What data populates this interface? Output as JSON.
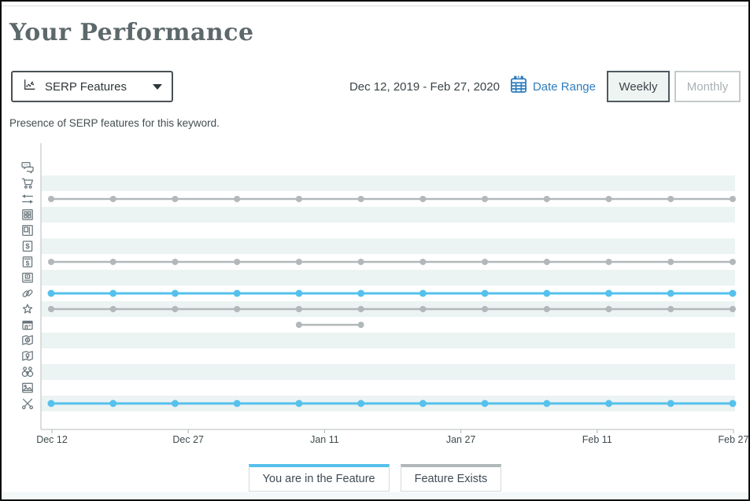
{
  "page": {
    "title": "Your Performance",
    "subtitle": "Presence of SERP features for this keyword."
  },
  "controls": {
    "metric_dropdown": {
      "value": "SERP Features",
      "icon": "scatter-chart-icon"
    },
    "date_range_text": "Dec 12, 2019 - Feb 27, 2020",
    "date_range_link": "Date Range",
    "calendar_icon": "calendar-icon",
    "granularity": {
      "selected": "Weekly",
      "options": [
        "Weekly",
        "Monthly"
      ]
    }
  },
  "legend": {
    "items": [
      {
        "label": "You are in the Feature",
        "color": "#55c1ec"
      },
      {
        "label": "Feature Exists",
        "color": "#b2b8ba"
      }
    ]
  },
  "colors": {
    "accent_blue": "#55c1ec",
    "series_gray": "#b2b8ba",
    "band_teal": "#ecf3f3",
    "link_blue": "#2f7dbe",
    "title_gray": "#5d686b",
    "axis_gray": "#cfd4d4"
  },
  "chart_data": {
    "type": "line",
    "title": "SERP feature presence timeline",
    "x_tick_labels": [
      "Dec 12",
      "Dec 27",
      "Jan 11",
      "Jan 27",
      "Feb 11",
      "Feb 27"
    ],
    "x_range": [
      "Dec 12, 2019",
      "Feb 27, 2020"
    ],
    "interval": "weekly",
    "num_points": 12,
    "grid": "horizontal-bands",
    "legend_position": "bottom",
    "series_colors": {
      "in_feature": "#55c1ec",
      "exists": "#b2b8ba"
    },
    "rows": [
      {
        "icon": "chat-icon",
        "status": "none",
        "points": []
      },
      {
        "icon": "cart-icon",
        "status": "none",
        "points": []
      },
      {
        "icon": "arrows-icon",
        "status": "exists",
        "points": [
          0,
          1,
          2,
          3,
          4,
          5,
          6,
          7,
          8,
          9,
          10,
          11
        ]
      },
      {
        "icon": "grid-icon",
        "status": "none",
        "points": []
      },
      {
        "icon": "layout-icon",
        "status": "none",
        "points": []
      },
      {
        "icon": "dollar-icon",
        "status": "none",
        "points": []
      },
      {
        "icon": "dollar-underline-icon",
        "status": "exists",
        "points": [
          0,
          1,
          2,
          3,
          4,
          5,
          6,
          7,
          8,
          9,
          10,
          11
        ]
      },
      {
        "icon": "video-icon",
        "status": "none",
        "points": []
      },
      {
        "icon": "link-icon",
        "status": "in_feature",
        "points": [
          0,
          1,
          2,
          3,
          4,
          5,
          6,
          7,
          8,
          9,
          10,
          11
        ]
      },
      {
        "icon": "star-icon",
        "status": "exists",
        "points": [
          0,
          1,
          2,
          3,
          4,
          5,
          6,
          7,
          8,
          9,
          10,
          11
        ]
      },
      {
        "icon": "news-icon",
        "status": "exists",
        "points": [
          4,
          5
        ]
      },
      {
        "icon": "map-dollar-icon",
        "status": "none",
        "points": []
      },
      {
        "icon": "map-pin-icon",
        "status": "none",
        "points": []
      },
      {
        "icon": "binoculars-icon",
        "status": "none",
        "points": []
      },
      {
        "icon": "image-icon",
        "status": "none",
        "points": []
      },
      {
        "icon": "scissors-icon",
        "status": "in_feature",
        "points": [
          0,
          1,
          2,
          3,
          4,
          5,
          6,
          7,
          8,
          9,
          10,
          11
        ]
      }
    ]
  }
}
